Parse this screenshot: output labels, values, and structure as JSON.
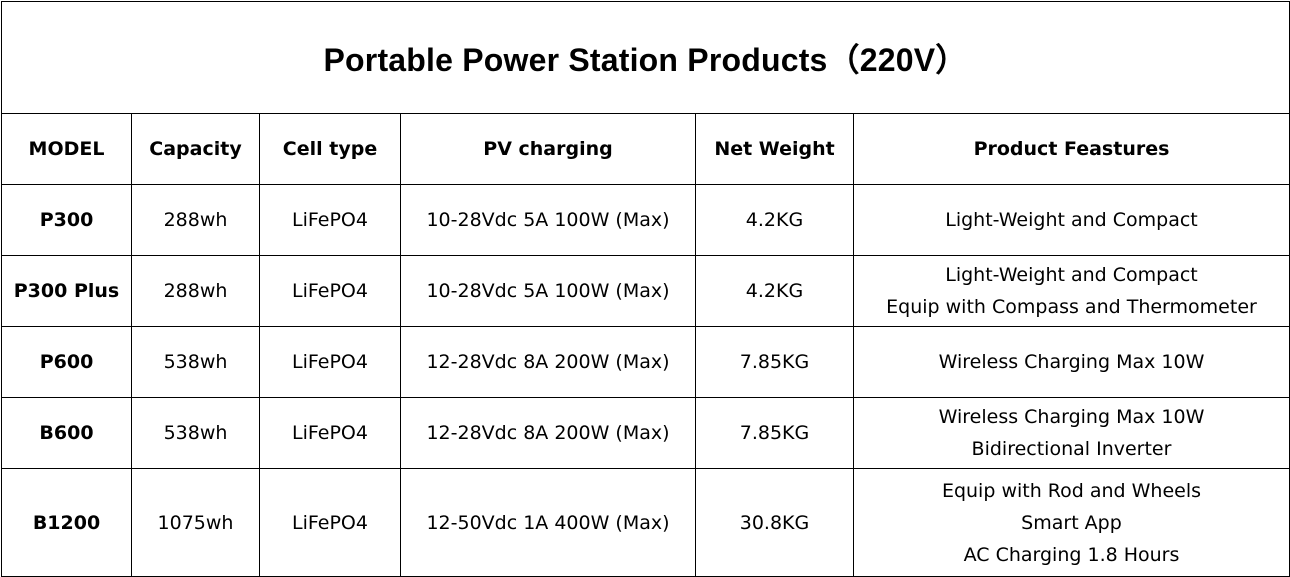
{
  "title": "Portable Power Station Products（220V）",
  "headers": {
    "model": "MODEL",
    "capacity": "Capacity",
    "cell_type": "Cell type",
    "pv_charging": "PV charging",
    "net_weight": "Net Weight",
    "features": "Product Feastures"
  },
  "rows": [
    {
      "model": "P300",
      "capacity": "288wh",
      "cell_type": "LiFePO4",
      "pv_charging": "10-28Vdc 5A 100W (Max)",
      "net_weight": "4.2KG",
      "features": [
        "Light-Weight and Compact"
      ]
    },
    {
      "model": "P300 Plus",
      "capacity": "288wh",
      "cell_type": "LiFePO4",
      "pv_charging": "10-28Vdc 5A 100W (Max)",
      "net_weight": "4.2KG",
      "features": [
        "Light-Weight and Compact",
        "Equip with Compass and Thermometer"
      ]
    },
    {
      "model": "P600",
      "capacity": "538wh",
      "cell_type": "LiFePO4",
      "pv_charging": "12-28Vdc 8A 200W (Max)",
      "net_weight": "7.85KG",
      "features": [
        "Wireless Charging Max 10W"
      ]
    },
    {
      "model": "B600",
      "capacity": "538wh",
      "cell_type": "LiFePO4",
      "pv_charging": "12-28Vdc 8A 200W (Max)",
      "net_weight": "7.85KG",
      "features": [
        "Wireless Charging Max 10W",
        "Bidirectional Inverter"
      ]
    },
    {
      "model": "B1200",
      "capacity": "1075wh",
      "cell_type": "LiFePO4",
      "pv_charging": "12-50Vdc 1A 400W (Max)",
      "net_weight": "30.8KG",
      "features": [
        "Equip with Rod and Wheels",
        "Smart App",
        "AC Charging 1.8 Hours"
      ]
    }
  ]
}
